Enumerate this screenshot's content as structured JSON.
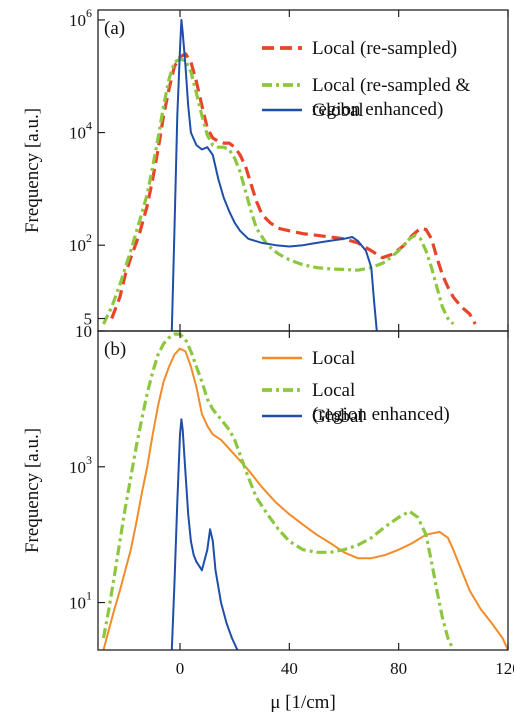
{
  "chart_data": [
    {
      "type": "line",
      "panel_label": "(a)",
      "ylabel": "Frequency [a.u.]",
      "yscale": "log",
      "ylim": [
        3,
        1500000
      ],
      "xlim": [
        -30,
        120
      ],
      "yticks": [
        {
          "base": "10",
          "exp": "6",
          "value": 1000000
        },
        {
          "base": "10",
          "exp": "4",
          "value": 10000
        },
        {
          "base": "10",
          "exp": "2",
          "value": 100
        },
        {
          "base": "5",
          "exp": "",
          "value": 5
        }
      ],
      "legend_position": "top-right",
      "series": [
        {
          "name": "Local (re-sampled)",
          "color": "#e8442a",
          "style": "dashed",
          "points": [
            [
              -25,
              5
            ],
            [
              -22,
              12
            ],
            [
              -20,
              30
            ],
            [
              -18,
              60
            ],
            [
              -15,
              150
            ],
            [
              -12,
              500
            ],
            [
              -10,
              1500
            ],
            [
              -8,
              5000
            ],
            [
              -6,
              20000
            ],
            [
              -4,
              60000
            ],
            [
              -2,
              150000
            ],
            [
              0,
              220000
            ],
            [
              2,
              250000
            ],
            [
              4,
              180000
            ],
            [
              6,
              80000
            ],
            [
              8,
              30000
            ],
            [
              10,
              12000
            ],
            [
              12,
              8000
            ],
            [
              14,
              7000
            ],
            [
              16,
              6500
            ],
            [
              18,
              6500
            ],
            [
              20,
              5500
            ],
            [
              22,
              4000
            ],
            [
              24,
              2500
            ],
            [
              26,
              1200
            ],
            [
              28,
              600
            ],
            [
              30,
              350
            ],
            [
              33,
              250
            ],
            [
              36,
              200
            ],
            [
              40,
              180
            ],
            [
              45,
              160
            ],
            [
              50,
              150
            ],
            [
              55,
              140
            ],
            [
              60,
              130
            ],
            [
              65,
              110
            ],
            [
              70,
              80
            ],
            [
              74,
              60
            ],
            [
              78,
              70
            ],
            [
              82,
              100
            ],
            [
              85,
              150
            ],
            [
              88,
              200
            ],
            [
              90,
              190
            ],
            [
              92,
              130
            ],
            [
              94,
              60
            ],
            [
              96,
              30
            ],
            [
              98,
              18
            ],
            [
              100,
              12
            ],
            [
              103,
              8
            ],
            [
              106,
              6
            ],
            [
              108,
              4
            ]
          ]
        },
        {
          "name": "Local (re-sampled & region enhanced)",
          "color": "#8dc63f",
          "style": "dashdot",
          "points": [
            [
              -28,
              4
            ],
            [
              -25,
              8
            ],
            [
              -22,
              20
            ],
            [
              -20,
              40
            ],
            [
              -18,
              80
            ],
            [
              -15,
              250
            ],
            [
              -12,
              800
            ],
            [
              -10,
              2500
            ],
            [
              -8,
              8000
            ],
            [
              -6,
              30000
            ],
            [
              -4,
              90000
            ],
            [
              -2,
              180000
            ],
            [
              0,
              200000
            ],
            [
              2,
              190000
            ],
            [
              4,
              120000
            ],
            [
              6,
              50000
            ],
            [
              8,
              20000
            ],
            [
              10,
              9000
            ],
            [
              12,
              6000
            ],
            [
              14,
              5500
            ],
            [
              16,
              5500
            ],
            [
              18,
              5000
            ],
            [
              20,
              3500
            ],
            [
              22,
              2000
            ],
            [
              24,
              900
            ],
            [
              26,
              400
            ],
            [
              28,
              200
            ],
            [
              32,
              100
            ],
            [
              36,
              70
            ],
            [
              40,
              55
            ],
            [
              45,
              45
            ],
            [
              50,
              40
            ],
            [
              55,
              38
            ],
            [
              60,
              37
            ],
            [
              65,
              36
            ],
            [
              70,
              40
            ],
            [
              75,
              50
            ],
            [
              80,
              80
            ],
            [
              84,
              130
            ],
            [
              86,
              150
            ],
            [
              88,
              130
            ],
            [
              90,
              80
            ],
            [
              92,
              40
            ],
            [
              94,
              18
            ],
            [
              96,
              8
            ],
            [
              98,
              5
            ],
            [
              100,
              4
            ]
          ]
        },
        {
          "name": "Global",
          "color": "#1f4ea8",
          "style": "solid",
          "points": [
            [
              -3,
              3
            ],
            [
              -2,
              200
            ],
            [
              -1,
              20000
            ],
            [
              0,
              300000
            ],
            [
              0.5,
              1000000
            ],
            [
              1,
              600000
            ],
            [
              2,
              150000
            ],
            [
              3,
              30000
            ],
            [
              4,
              10000
            ],
            [
              6,
              6000
            ],
            [
              8,
              5000
            ],
            [
              10,
              5500
            ],
            [
              12,
              4000
            ],
            [
              14,
              1500
            ],
            [
              16,
              700
            ],
            [
              18,
              400
            ],
            [
              20,
              250
            ],
            [
              22,
              180
            ],
            [
              25,
              130
            ],
            [
              30,
              110
            ],
            [
              35,
              100
            ],
            [
              40,
              95
            ],
            [
              45,
              100
            ],
            [
              50,
              110
            ],
            [
              55,
              120
            ],
            [
              60,
              130
            ],
            [
              63,
              140
            ],
            [
              65,
              120
            ],
            [
              68,
              80
            ],
            [
              70,
              40
            ],
            [
              71,
              10
            ],
            [
              72,
              3
            ]
          ]
        }
      ]
    },
    {
      "type": "line",
      "panel_label": "(b)",
      "ylabel": "Frequency [a.u.]",
      "xlabel": "μ [1/cm]",
      "yscale": "log",
      "ylim": [
        2,
        100000
      ],
      "xlim": [
        -30,
        120
      ],
      "xticks": [
        "0",
        "40",
        "80",
        "120"
      ],
      "xtick_values": [
        0,
        40,
        80,
        120
      ],
      "yticks": [
        {
          "base": "10",
          "exp": "",
          "value": 100000
        },
        {
          "base": "10",
          "exp": "3",
          "value": 1000
        },
        {
          "base": "10",
          "exp": "1",
          "value": 10
        }
      ],
      "legend_position": "top-right",
      "series": [
        {
          "name": "Local",
          "color": "#f28c28",
          "style": "solid",
          "points": [
            [
              -28,
              2
            ],
            [
              -26,
              4
            ],
            [
              -24,
              8
            ],
            [
              -22,
              15
            ],
            [
              -20,
              30
            ],
            [
              -18,
              60
            ],
            [
              -16,
              150
            ],
            [
              -14,
              400
            ],
            [
              -12,
              1000
            ],
            [
              -10,
              3000
            ],
            [
              -8,
              8000
            ],
            [
              -6,
              18000
            ],
            [
              -4,
              30000
            ],
            [
              -2,
              45000
            ],
            [
              0,
              55000
            ],
            [
              2,
              50000
            ],
            [
              4,
              30000
            ],
            [
              6,
              15000
            ],
            [
              8,
              6000
            ],
            [
              10,
              4000
            ],
            [
              12,
              3000
            ],
            [
              15,
              2500
            ],
            [
              20,
              1500
            ],
            [
              25,
              900
            ],
            [
              30,
              500
            ],
            [
              35,
              300
            ],
            [
              40,
              200
            ],
            [
              45,
              140
            ],
            [
              50,
              100
            ],
            [
              55,
              75
            ],
            [
              60,
              55
            ],
            [
              65,
              45
            ],
            [
              70,
              45
            ],
            [
              75,
              50
            ],
            [
              80,
              60
            ],
            [
              85,
              75
            ],
            [
              90,
              100
            ],
            [
              95,
              110
            ],
            [
              98,
              90
            ],
            [
              100,
              60
            ],
            [
              103,
              30
            ],
            [
              106,
              15
            ],
            [
              110,
              8
            ],
            [
              114,
              5
            ],
            [
              118,
              3
            ],
            [
              120,
              2
            ]
          ]
        },
        {
          "name": "Local (region enhanced)",
          "color": "#8dc63f",
          "style": "dashdot",
          "points": [
            [
              -28,
              3
            ],
            [
              -26,
              8
            ],
            [
              -24,
              25
            ],
            [
              -22,
              80
            ],
            [
              -20,
              250
            ],
            [
              -18,
              700
            ],
            [
              -16,
              2000
            ],
            [
              -14,
              5000
            ],
            [
              -12,
              12000
            ],
            [
              -10,
              25000
            ],
            [
              -8,
              45000
            ],
            [
              -6,
              65000
            ],
            [
              -4,
              80000
            ],
            [
              -2,
              90000
            ],
            [
              0,
              90000
            ],
            [
              2,
              75000
            ],
            [
              4,
              50000
            ],
            [
              6,
              30000
            ],
            [
              8,
              18000
            ],
            [
              10,
              10000
            ],
            [
              12,
              7000
            ],
            [
              15,
              5000
            ],
            [
              18,
              3500
            ],
            [
              20,
              2500
            ],
            [
              22,
              1500
            ],
            [
              25,
              700
            ],
            [
              28,
              350
            ],
            [
              32,
              200
            ],
            [
              36,
              120
            ],
            [
              40,
              80
            ],
            [
              45,
              60
            ],
            [
              50,
              55
            ],
            [
              55,
              55
            ],
            [
              60,
              60
            ],
            [
              65,
              70
            ],
            [
              70,
              90
            ],
            [
              75,
              130
            ],
            [
              80,
              180
            ],
            [
              84,
              220
            ],
            [
              87,
              180
            ],
            [
              90,
              100
            ],
            [
              92,
              40
            ],
            [
              94,
              15
            ],
            [
              96,
              6
            ],
            [
              98,
              3
            ],
            [
              100,
              2
            ]
          ]
        },
        {
          "name": "Global",
          "color": "#1f4ea8",
          "style": "solid",
          "points": [
            [
              -3,
              2
            ],
            [
              -2,
              20
            ],
            [
              -1,
              300
            ],
            [
              0,
              3000
            ],
            [
              0.5,
              5000
            ],
            [
              1,
              3500
            ],
            [
              2,
              800
            ],
            [
              3,
              200
            ],
            [
              4,
              80
            ],
            [
              5,
              50
            ],
            [
              6,
              40
            ],
            [
              8,
              30
            ],
            [
              10,
              60
            ],
            [
              11,
              120
            ],
            [
              12,
              80
            ],
            [
              13,
              30
            ],
            [
              15,
              10
            ],
            [
              17,
              5
            ],
            [
              19,
              3
            ],
            [
              21,
              2
            ]
          ]
        }
      ]
    }
  ]
}
